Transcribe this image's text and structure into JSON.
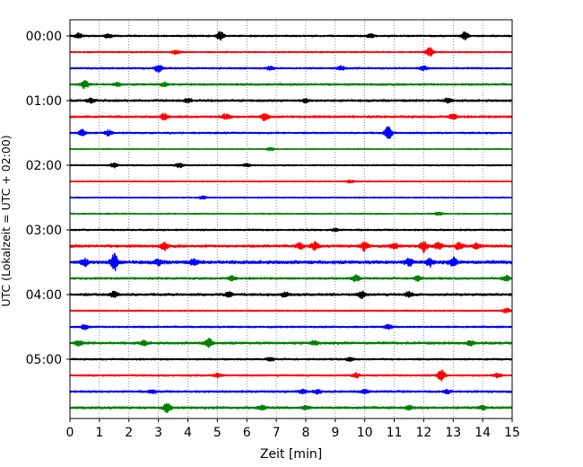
{
  "chart_data": {
    "type": "line",
    "title": "",
    "xlabel": "Zeit  [min]",
    "ylabel": "UTC (Lokalzeit = UTC + 02:00)",
    "xlim": [
      0,
      15
    ],
    "x_ticks": [
      "0",
      "1",
      "2",
      "3",
      "4",
      "5",
      "6",
      "7",
      "8",
      "9",
      "10",
      "11",
      "12",
      "13",
      "14",
      "15"
    ],
    "y_ticks": [
      "00:00",
      "01:00",
      "02:00",
      "03:00",
      "04:00",
      "05:00"
    ],
    "grid": "vertical dotted at each minute",
    "legend": "none",
    "series_colors": [
      "#000000",
      "#ff0000",
      "#0000ff",
      "#008000"
    ],
    "rows": [
      {
        "time": "00:00",
        "color": "#000000",
        "noise": 1.0,
        "bursts": [
          [
            0.3,
            3.0
          ],
          [
            1.3,
            2.2
          ],
          [
            5.1,
            5.0
          ],
          [
            10.2,
            2.5
          ],
          [
            13.4,
            4.0
          ]
        ]
      },
      {
        "time": "00:15",
        "color": "#ff0000",
        "noise": 0.8,
        "bursts": [
          [
            3.6,
            2.0
          ],
          [
            12.2,
            5.0
          ]
        ]
      },
      {
        "time": "00:30",
        "color": "#0000ff",
        "noise": 1.0,
        "bursts": [
          [
            3.0,
            4.0
          ],
          [
            6.8,
            2.0
          ],
          [
            9.2,
            2.0
          ],
          [
            12.0,
            2.2
          ]
        ]
      },
      {
        "time": "00:45",
        "color": "#008000",
        "noise": 1.2,
        "bursts": [
          [
            0.5,
            4.5
          ],
          [
            1.6,
            2.0
          ],
          [
            3.2,
            2.0
          ]
        ]
      },
      {
        "time": "01:00",
        "color": "#000000",
        "noise": 1.3,
        "bursts": [
          [
            0.7,
            2.5
          ],
          [
            4.0,
            2.0
          ],
          [
            8.0,
            2.0
          ],
          [
            12.8,
            2.5
          ]
        ]
      },
      {
        "time": "01:15",
        "color": "#ff0000",
        "noise": 1.3,
        "bursts": [
          [
            3.2,
            3.5
          ],
          [
            5.3,
            3.0
          ],
          [
            6.6,
            4.0
          ],
          [
            13.0,
            3.0
          ]
        ]
      },
      {
        "time": "01:30",
        "color": "#0000ff",
        "noise": 1.0,
        "bursts": [
          [
            0.4,
            3.5
          ],
          [
            1.3,
            3.0
          ],
          [
            10.8,
            7.0
          ]
        ]
      },
      {
        "time": "01:45",
        "color": "#008000",
        "noise": 0.6,
        "bursts": [
          [
            6.8,
            1.5
          ]
        ]
      },
      {
        "time": "02:00",
        "color": "#000000",
        "noise": 0.8,
        "bursts": [
          [
            1.5,
            2.5
          ],
          [
            3.7,
            2.5
          ],
          [
            6.0,
            1.5
          ]
        ]
      },
      {
        "time": "02:15",
        "color": "#ff0000",
        "noise": 0.7,
        "bursts": [
          [
            9.5,
            1.5
          ]
        ]
      },
      {
        "time": "02:30",
        "color": "#0000ff",
        "noise": 0.7,
        "bursts": [
          [
            4.5,
            1.5
          ]
        ]
      },
      {
        "time": "02:45",
        "color": "#008000",
        "noise": 0.7,
        "bursts": [
          [
            12.5,
            1.5
          ]
        ]
      },
      {
        "time": "03:00",
        "color": "#000000",
        "noise": 1.0,
        "bursts": [
          [
            9.0,
            1.5
          ]
        ]
      },
      {
        "time": "03:15",
        "color": "#ff0000",
        "noise": 1.5,
        "bursts": [
          [
            3.2,
            4.0
          ],
          [
            7.8,
            3.0
          ],
          [
            8.3,
            4.5
          ],
          [
            10.0,
            5.0
          ],
          [
            11.0,
            3.0
          ],
          [
            12.0,
            6.0
          ],
          [
            12.5,
            4.0
          ],
          [
            13.2,
            4.0
          ],
          [
            13.8,
            3.0
          ]
        ]
      },
      {
        "time": "03:30",
        "color": "#0000ff",
        "noise": 2.0,
        "bursts": [
          [
            0.5,
            4.0
          ],
          [
            1.5,
            9.0
          ],
          [
            3.0,
            3.0
          ],
          [
            4.2,
            3.0
          ],
          [
            11.5,
            3.5
          ],
          [
            12.2,
            4.0
          ],
          [
            13.0,
            4.5
          ]
        ]
      },
      {
        "time": "03:45",
        "color": "#008000",
        "noise": 1.2,
        "bursts": [
          [
            5.5,
            2.5
          ],
          [
            9.7,
            3.5
          ],
          [
            11.8,
            2.5
          ],
          [
            14.8,
            3.0
          ]
        ]
      },
      {
        "time": "04:00",
        "color": "#000000",
        "noise": 1.4,
        "bursts": [
          [
            1.5,
            3.5
          ],
          [
            5.4,
            3.0
          ],
          [
            7.3,
            3.0
          ],
          [
            9.9,
            4.0
          ],
          [
            11.5,
            3.0
          ]
        ]
      },
      {
        "time": "04:15",
        "color": "#ff0000",
        "noise": 0.8,
        "bursts": [
          [
            14.8,
            2.5
          ]
        ]
      },
      {
        "time": "04:30",
        "color": "#0000ff",
        "noise": 1.0,
        "bursts": [
          [
            0.5,
            3.0
          ],
          [
            10.8,
            2.5
          ]
        ]
      },
      {
        "time": "04:45",
        "color": "#008000",
        "noise": 1.4,
        "bursts": [
          [
            0.3,
            2.5
          ],
          [
            2.5,
            2.5
          ],
          [
            4.7,
            5.0
          ],
          [
            8.3,
            2.5
          ],
          [
            13.6,
            2.5
          ]
        ]
      },
      {
        "time": "05:00",
        "color": "#000000",
        "noise": 1.0,
        "bursts": [
          [
            6.8,
            2.0
          ],
          [
            9.5,
            1.8
          ]
        ]
      },
      {
        "time": "05:15",
        "color": "#ff0000",
        "noise": 1.0,
        "bursts": [
          [
            5.0,
            2.0
          ],
          [
            9.7,
            2.5
          ],
          [
            12.6,
            6.0
          ],
          [
            14.5,
            2.5
          ]
        ]
      },
      {
        "time": "05:30",
        "color": "#0000ff",
        "noise": 1.2,
        "bursts": [
          [
            2.8,
            2.0
          ],
          [
            7.9,
            2.2
          ],
          [
            8.4,
            2.5
          ],
          [
            10.0,
            2.0
          ],
          [
            12.8,
            2.0
          ]
        ]
      },
      {
        "time": "05:45",
        "color": "#008000",
        "noise": 1.4,
        "bursts": [
          [
            3.3,
            5.0
          ],
          [
            6.5,
            2.5
          ],
          [
            8.0,
            2.0
          ],
          [
            11.5,
            2.0
          ],
          [
            14.0,
            2.0
          ]
        ]
      }
    ]
  }
}
